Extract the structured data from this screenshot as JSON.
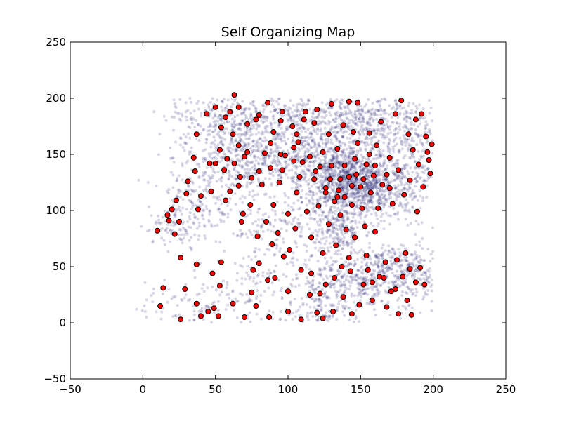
{
  "chart_data": {
    "type": "scatter",
    "title": "Self Organizing Map",
    "xlabel": "",
    "ylabel": "",
    "xlim": [
      -50,
      250
    ],
    "ylim": [
      -50,
      250
    ],
    "xticks": [
      -50,
      0,
      50,
      100,
      150,
      200,
      250
    ],
    "yticks": [
      -50,
      0,
      50,
      100,
      150,
      200,
      250
    ],
    "grid": false,
    "legend": "none",
    "colors": {
      "data_points": "#1a1a6e",
      "som_nodes_fill": "#ff0000",
      "som_nodes_edge": "#000000"
    },
    "series": [
      {
        "role": "data_points",
        "clusters": [
          {
            "cx": 140,
            "cy": 128,
            "sx": 16,
            "sy": 14,
            "n": 900
          },
          {
            "cx": 160,
            "cy": 115,
            "sx": 12,
            "sy": 12,
            "n": 300
          },
          {
            "cx": 110,
            "cy": 160,
            "sx": 34,
            "sy": 22,
            "n": 700
          },
          {
            "cx": 65,
            "cy": 145,
            "sx": 22,
            "sy": 15,
            "n": 350
          },
          {
            "cx": 60,
            "cy": 185,
            "sx": 20,
            "sy": 10,
            "n": 250
          },
          {
            "cx": 150,
            "cy": 180,
            "sx": 28,
            "sy": 14,
            "n": 500
          },
          {
            "cx": 185,
            "cy": 135,
            "sx": 10,
            "sy": 20,
            "n": 200
          },
          {
            "cx": 135,
            "cy": 85,
            "sx": 8,
            "sy": 18,
            "n": 250
          },
          {
            "cx": 95,
            "cy": 85,
            "sx": 20,
            "sy": 12,
            "n": 150
          },
          {
            "cx": 40,
            "cy": 110,
            "sx": 14,
            "sy": 10,
            "n": 120
          },
          {
            "cx": 25,
            "cy": 85,
            "sx": 12,
            "sy": 8,
            "n": 100
          },
          {
            "cx": 150,
            "cy": 35,
            "sx": 26,
            "sy": 12,
            "n": 450
          },
          {
            "cx": 170,
            "cy": 55,
            "sx": 14,
            "sy": 8,
            "n": 150
          },
          {
            "cx": 125,
            "cy": 10,
            "sx": 14,
            "sy": 8,
            "n": 100
          },
          {
            "cx": 40,
            "cy": 15,
            "sx": 25,
            "sy": 12,
            "n": 120
          },
          {
            "cx": 85,
            "cy": 40,
            "sx": 18,
            "sy": 20,
            "n": 110
          },
          {
            "cx": 190,
            "cy": 45,
            "sx": 8,
            "sy": 12,
            "n": 70
          }
        ]
      },
      {
        "role": "som_nodes",
        "points": [
          [
            10,
            82
          ],
          [
            12,
            15
          ],
          [
            14,
            31
          ],
          [
            17,
            96
          ],
          [
            18,
            91
          ],
          [
            20,
            101
          ],
          [
            22,
            79
          ],
          [
            23,
            109
          ],
          [
            25,
            90
          ],
          [
            26,
            3
          ],
          [
            26,
            58
          ],
          [
            29,
            30
          ],
          [
            30,
            115
          ],
          [
            31,
            126
          ],
          [
            36,
            135
          ],
          [
            37,
            17
          ],
          [
            37,
            52
          ],
          [
            38,
            101
          ],
          [
            40,
            113
          ],
          [
            40,
            6
          ],
          [
            37,
            168
          ],
          [
            35,
            147
          ],
          [
            45,
            10
          ],
          [
            46,
            142
          ],
          [
            47,
            117
          ],
          [
            48,
            44
          ],
          [
            49,
            13
          ],
          [
            52,
            6
          ],
          [
            53,
            154
          ],
          [
            53,
            33
          ],
          [
            54,
            174
          ],
          [
            54,
            54
          ],
          [
            56,
            136
          ],
          [
            57,
            109
          ],
          [
            57,
            183
          ],
          [
            60,
            117
          ],
          [
            60,
            188
          ],
          [
            62,
            17
          ],
          [
            62,
            168
          ],
          [
            63,
            203
          ],
          [
            63,
            142
          ],
          [
            66,
            122
          ],
          [
            67,
            130
          ],
          [
            68,
            90
          ],
          [
            69,
            97
          ],
          [
            70,
            5
          ],
          [
            70,
            148
          ],
          [
            72,
            177
          ],
          [
            74,
            105
          ],
          [
            75,
            129
          ],
          [
            75,
            27
          ],
          [
            76,
            47
          ],
          [
            78,
            15
          ],
          [
            78,
            181
          ],
          [
            80,
            185
          ],
          [
            79,
            77
          ],
          [
            80,
            135
          ],
          [
            80,
            53
          ],
          [
            82,
            123
          ],
          [
            84,
            151
          ],
          [
            85,
            90
          ],
          [
            86,
            38
          ],
          [
            87,
            5
          ],
          [
            88,
            138
          ],
          [
            89,
            70
          ],
          [
            90,
            105
          ],
          [
            90,
            170
          ],
          [
            91,
            40
          ],
          [
            93,
            80
          ],
          [
            94,
            125
          ],
          [
            95,
            150
          ],
          [
            95,
            180
          ],
          [
            96,
            188
          ],
          [
            97,
            59
          ],
          [
            98,
            149
          ],
          [
            100,
            10
          ],
          [
            100,
            28
          ],
          [
            100,
            97
          ],
          [
            101,
            65
          ],
          [
            103,
            175
          ],
          [
            104,
            144
          ],
          [
            105,
            84
          ],
          [
            106,
            116
          ],
          [
            107,
            161
          ],
          [
            109,
            3
          ],
          [
            109,
            47
          ],
          [
            110,
            143
          ],
          [
            111,
            181
          ],
          [
            113,
            99
          ],
          [
            115,
            148
          ],
          [
            115,
            25
          ],
          [
            116,
            76
          ],
          [
            118,
            128
          ],
          [
            119,
            135
          ],
          [
            120,
            9
          ],
          [
            121,
            104
          ],
          [
            122,
            139
          ],
          [
            124,
            4
          ],
          [
            124,
            62
          ],
          [
            126,
            34
          ],
          [
            126,
            120
          ],
          [
            128,
            88
          ],
          [
            129,
            128
          ],
          [
            130,
            195
          ],
          [
            131,
            10
          ],
          [
            132,
            108
          ],
          [
            133,
            69
          ],
          [
            134,
            155
          ],
          [
            135,
            118
          ],
          [
            136,
            128
          ],
          [
            137,
            50
          ],
          [
            138,
            23
          ],
          [
            139,
            112
          ],
          [
            140,
            83
          ],
          [
            142,
            130
          ],
          [
            143,
            46
          ],
          [
            144,
            105
          ],
          [
            145,
            170
          ],
          [
            146,
            76
          ],
          [
            147,
            132
          ],
          [
            148,
            196
          ],
          [
            149,
            16
          ],
          [
            150,
            121
          ],
          [
            151,
            102
          ],
          [
            152,
            34
          ],
          [
            153,
            86
          ],
          [
            154,
            141
          ],
          [
            155,
            47
          ],
          [
            156,
            169
          ],
          [
            157,
            116
          ],
          [
            158,
            20
          ],
          [
            159,
            131
          ],
          [
            160,
            81
          ],
          [
            161,
            158
          ],
          [
            162,
            102
          ],
          [
            163,
            41
          ],
          [
            164,
            179
          ],
          [
            165,
            123
          ],
          [
            167,
            54
          ],
          [
            168,
            14
          ],
          [
            170,
            147
          ],
          [
            171,
            28
          ],
          [
            172,
            106
          ],
          [
            174,
            186
          ],
          [
            175,
            56
          ],
          [
            176,
            136
          ],
          [
            178,
            198
          ],
          [
            179,
            41
          ],
          [
            180,
            114
          ],
          [
            181,
            62
          ],
          [
            182,
            20
          ],
          [
            183,
            168
          ],
          [
            184,
            127
          ],
          [
            185,
            7
          ],
          [
            186,
            154
          ],
          [
            188,
            181
          ],
          [
            189,
            99
          ],
          [
            190,
            141
          ],
          [
            191,
            49
          ],
          [
            192,
            186
          ],
          [
            193,
            121
          ],
          [
            194,
            34
          ],
          [
            195,
            166
          ],
          [
            196,
            152
          ],
          [
            197,
            145
          ],
          [
            198,
            133
          ],
          [
            199,
            159
          ],
          [
            142,
            197
          ],
          [
            146,
            146
          ],
          [
            124,
            152
          ],
          [
            118,
            178
          ],
          [
            108,
            130
          ],
          [
            130,
            140
          ],
          [
            136,
            96
          ],
          [
            139,
            140
          ],
          [
            144,
            122
          ],
          [
            134,
            112
          ],
          [
            126,
            116
          ],
          [
            152,
            128
          ],
          [
            160,
            140
          ],
          [
            168,
            132
          ],
          [
            170,
            120
          ],
          [
            156,
            150
          ],
          [
            148,
            160
          ],
          [
            138,
            176
          ],
          [
            128,
            168
          ],
          [
            120,
            190
          ],
          [
            112,
            188
          ],
          [
            104,
            156
          ],
          [
            96,
            136
          ],
          [
            88,
            160
          ],
          [
            72,
            152
          ],
          [
            66,
            158
          ],
          [
            58,
            146
          ],
          [
            50,
            142
          ],
          [
            44,
            186
          ],
          [
            50,
            192
          ],
          [
            66,
            192
          ],
          [
            86,
            196
          ],
          [
            106,
            168
          ],
          [
            142,
            58
          ],
          [
            154,
            60
          ],
          [
            166,
            40
          ],
          [
            174,
            30
          ],
          [
            184,
            48
          ],
          [
            188,
            36
          ],
          [
            132,
            40
          ],
          [
            122,
            26
          ],
          [
            116,
            44
          ],
          [
            144,
            8
          ],
          [
            158,
            36
          ],
          [
            176,
            8
          ]
        ]
      }
    ]
  }
}
